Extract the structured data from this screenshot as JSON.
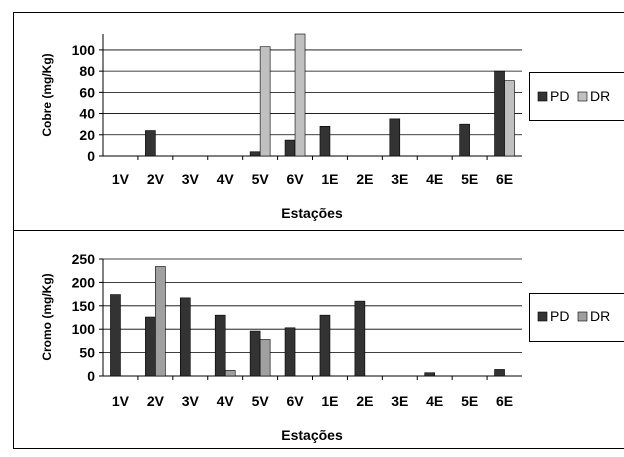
{
  "chart_data": [
    {
      "type": "bar",
      "categories": [
        "1V",
        "2V",
        "3V",
        "4V",
        "5V",
        "6V",
        "1E",
        "2E",
        "3E",
        "4E",
        "5E",
        "6E"
      ],
      "series": [
        {
          "name": "PD",
          "color": "#333333",
          "values": [
            0,
            24,
            0,
            0,
            4,
            15,
            28,
            0,
            35,
            0,
            30,
            80
          ]
        },
        {
          "name": "DR",
          "color": "#c0c0c0",
          "values": [
            0,
            0,
            0,
            0,
            103,
            115,
            0,
            0,
            0,
            0,
            0,
            71
          ]
        }
      ],
      "yticks": [
        "0",
        "20",
        "40",
        "60",
        "80",
        "100"
      ],
      "ylim": [
        0,
        115
      ],
      "ylabel": "Cobre (mg/Kg)",
      "xlabel": "Estações",
      "grid": true,
      "legend_position": "right"
    },
    {
      "type": "bar",
      "categories": [
        "1V",
        "2V",
        "3V",
        "4V",
        "5V",
        "6V",
        "1E",
        "2E",
        "3E",
        "4E",
        "5E",
        "6E"
      ],
      "series": [
        {
          "name": "PD",
          "color": "#333333",
          "values": [
            174,
            126,
            167,
            130,
            96,
            103,
            130,
            160,
            0,
            7,
            0,
            14
          ]
        },
        {
          "name": "DR",
          "color": "#a0a0a0",
          "values": [
            0,
            234,
            0,
            12,
            78,
            0,
            0,
            0,
            0,
            0,
            0,
            0
          ]
        }
      ],
      "yticks": [
        "0",
        "50",
        "100",
        "150",
        "200",
        "250"
      ],
      "ylim": [
        0,
        250
      ],
      "ylabel": "Cromo (mg/Kg)",
      "xlabel": "Estações",
      "grid": true,
      "legend_position": "right"
    }
  ]
}
